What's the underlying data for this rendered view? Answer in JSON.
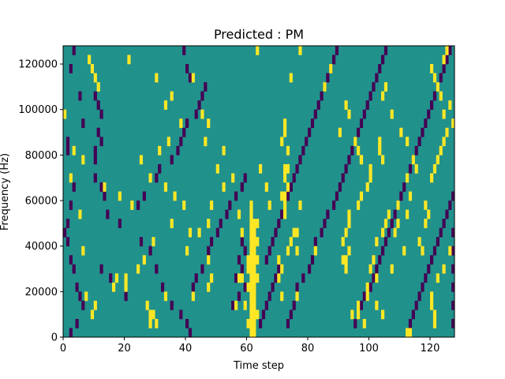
{
  "chart_data": {
    "type": "heatmap",
    "title": "Predicted : PM",
    "xlabel": "Time step",
    "ylabel": "Frequency (Hz)",
    "xlim": [
      0,
      128
    ],
    "ylim": [
      0,
      128000
    ],
    "xticks": [
      0,
      20,
      40,
      60,
      80,
      100,
      120
    ],
    "xtick_labels": [
      "0",
      "20",
      "40",
      "60",
      "80",
      "100",
      "120"
    ],
    "yticks": [
      0,
      20000,
      40000,
      60000,
      80000,
      100000,
      120000
    ],
    "ytick_labels": [
      "0",
      "20000",
      "40000",
      "60000",
      "80000",
      "100000",
      "120000"
    ],
    "grid": false,
    "colors": {
      "background": "#21918c",
      "high": "#fde725",
      "low": "#440154"
    },
    "cell_width": 1,
    "cell_height": 4000,
    "high_cells": [
      [
        61,
        0
      ],
      [
        62,
        0
      ],
      [
        61,
        4000
      ],
      [
        62,
        4000
      ],
      [
        61,
        8000
      ],
      [
        62,
        8000
      ],
      [
        61,
        12000
      ],
      [
        62,
        12000
      ],
      [
        61,
        16000
      ],
      [
        62,
        16000
      ],
      [
        61,
        20000
      ],
      [
        62,
        20000
      ],
      [
        61,
        24000
      ],
      [
        62,
        24000
      ],
      [
        61,
        28000
      ],
      [
        62,
        28000
      ],
      [
        61,
        32000
      ],
      [
        62,
        32000
      ],
      [
        61,
        36000
      ],
      [
        62,
        36000
      ],
      [
        61,
        40000
      ],
      [
        62,
        40000
      ],
      [
        61,
        44000
      ],
      [
        62,
        44000
      ],
      [
        61,
        48000
      ],
      [
        62,
        48000
      ],
      [
        61,
        52000
      ],
      [
        60,
        28000
      ],
      [
        60,
        32000
      ],
      [
        63,
        32000
      ],
      [
        63,
        40000
      ],
      [
        60,
        20000
      ],
      [
        63,
        24000
      ],
      [
        59,
        12000
      ],
      [
        60,
        4000
      ],
      [
        63,
        8000
      ],
      [
        28,
        4000
      ],
      [
        28,
        8000
      ],
      [
        29,
        8000
      ],
      [
        30,
        4000
      ],
      [
        33,
        16000
      ],
      [
        16,
        20000
      ],
      [
        20,
        20000
      ],
      [
        20,
        24000
      ],
      [
        17,
        24000
      ],
      [
        27,
        12000
      ],
      [
        10,
        12000
      ],
      [
        42,
        16000
      ],
      [
        47,
        20000
      ],
      [
        47,
        32000
      ],
      [
        48,
        24000
      ],
      [
        40,
        36000
      ],
      [
        41,
        44000
      ],
      [
        44,
        44000
      ],
      [
        35,
        48000
      ],
      [
        47,
        48000
      ],
      [
        48,
        56000
      ],
      [
        58,
        24000
      ],
      [
        56,
        12000
      ],
      [
        57,
        24000
      ],
      [
        61,
        56000
      ],
      [
        72,
        52000
      ],
      [
        72,
        56000
      ],
      [
        71,
        60000
      ],
      [
        72,
        60000
      ],
      [
        73,
        64000
      ],
      [
        72,
        68000
      ],
      [
        72,
        72000
      ],
      [
        73,
        72000
      ],
      [
        71,
        84000
      ],
      [
        72,
        88000
      ],
      [
        72,
        92000
      ],
      [
        73,
        80000
      ],
      [
        75,
        44000
      ],
      [
        74,
        40000
      ],
      [
        73,
        36000
      ],
      [
        70,
        32000
      ],
      [
        70,
        24000
      ],
      [
        71,
        16000
      ],
      [
        76,
        36000
      ],
      [
        76,
        16000
      ],
      [
        71,
        28000
      ],
      [
        76,
        44000
      ],
      [
        77,
        56000
      ],
      [
        82,
        36000
      ],
      [
        92,
        28000
      ],
      [
        91,
        32000
      ],
      [
        92,
        32000
      ],
      [
        93,
        36000
      ],
      [
        91,
        40000
      ],
      [
        92,
        44000
      ],
      [
        93,
        48000
      ],
      [
        93,
        52000
      ],
      [
        96,
        56000
      ],
      [
        97,
        60000
      ],
      [
        99,
        64000
      ],
      [
        100,
        68000
      ],
      [
        97,
        76000
      ],
      [
        101,
        32000
      ],
      [
        96,
        12000
      ],
      [
        96,
        8000
      ],
      [
        102,
        40000
      ],
      [
        100,
        72000
      ],
      [
        103,
        80000
      ],
      [
        103,
        84000
      ],
      [
        104,
        76000
      ],
      [
        100,
        28000
      ],
      [
        104,
        44000
      ],
      [
        105,
        48000
      ],
      [
        106,
        52000
      ],
      [
        109,
        56000
      ],
      [
        109,
        48000
      ],
      [
        102,
        12000
      ],
      [
        104,
        8000
      ],
      [
        112,
        0
      ],
      [
        113,
        0
      ],
      [
        116,
        40000
      ],
      [
        117,
        36000
      ],
      [
        118,
        48000
      ],
      [
        118,
        56000
      ],
      [
        119,
        52000
      ],
      [
        120,
        68000
      ],
      [
        121,
        72000
      ],
      [
        122,
        76000
      ],
      [
        123,
        80000
      ],
      [
        124,
        84000
      ],
      [
        125,
        88000
      ],
      [
        127,
        92000
      ],
      [
        124,
        96000
      ],
      [
        126,
        100000
      ],
      [
        123,
        104000
      ],
      [
        122,
        108000
      ],
      [
        121,
        112000
      ],
      [
        120,
        116000
      ],
      [
        124,
        120000
      ],
      [
        125,
        124000
      ],
      [
        124,
        28000
      ],
      [
        126,
        36000
      ],
      [
        122,
        24000
      ],
      [
        120,
        12000
      ],
      [
        121,
        4000
      ],
      [
        121,
        8000
      ],
      [
        120,
        16000
      ],
      [
        9,
        116000
      ],
      [
        10,
        112000
      ],
      [
        11,
        108000
      ],
      [
        8,
        120000
      ],
      [
        21,
        120000
      ],
      [
        30,
        112000
      ],
      [
        35,
        104000
      ],
      [
        33,
        100000
      ],
      [
        38,
        92000
      ],
      [
        34,
        84000
      ],
      [
        31,
        80000
      ],
      [
        25,
        76000
      ],
      [
        28,
        68000
      ],
      [
        33,
        64000
      ],
      [
        36,
        60000
      ],
      [
        39,
        56000
      ],
      [
        22,
        56000
      ],
      [
        18,
        60000
      ],
      [
        13,
        64000
      ],
      [
        6,
        76000
      ],
      [
        3,
        80000
      ],
      [
        0,
        96000
      ],
      [
        2,
        68000
      ],
      [
        5,
        52000
      ],
      [
        6,
        36000
      ],
      [
        9,
        8000
      ],
      [
        7,
        16000
      ],
      [
        24,
        28000
      ],
      [
        26,
        32000
      ],
      [
        29,
        40000
      ],
      [
        42,
        112000
      ],
      [
        45,
        96000
      ],
      [
        47,
        92000
      ],
      [
        46,
        84000
      ],
      [
        52,
        80000
      ],
      [
        50,
        72000
      ],
      [
        55,
        68000
      ],
      [
        52,
        64000
      ],
      [
        57,
        52000
      ],
      [
        58,
        44000
      ],
      [
        63,
        48000
      ],
      [
        67,
        56000
      ],
      [
        66,
        64000
      ],
      [
        64,
        72000
      ],
      [
        63,
        124000
      ],
      [
        74,
        112000
      ],
      [
        77,
        124000
      ],
      [
        85,
        108000
      ],
      [
        87,
        116000
      ],
      [
        92,
        100000
      ],
      [
        93,
        96000
      ],
      [
        90,
        88000
      ],
      [
        95,
        84000
      ],
      [
        96,
        80000
      ],
      [
        97,
        76000
      ],
      [
        105,
        108000
      ],
      [
        104,
        104000
      ],
      [
        107,
        96000
      ],
      [
        110,
        88000
      ],
      [
        112,
        84000
      ],
      [
        114,
        76000
      ],
      [
        115,
        72000
      ],
      [
        112,
        68000
      ],
      [
        113,
        60000
      ],
      [
        112,
        52000
      ],
      [
        108,
        44000
      ],
      [
        111,
        36000
      ],
      [
        107,
        28000
      ],
      [
        102,
        24000
      ],
      [
        99,
        20000
      ],
      [
        99,
        16000
      ],
      [
        98,
        4000
      ],
      [
        94,
        8000
      ]
    ],
    "low_cells": [
      [
        1,
        84000
      ],
      [
        1,
        80000
      ],
      [
        2,
        116000
      ],
      [
        3,
        124000
      ],
      [
        5,
        104000
      ],
      [
        6,
        92000
      ],
      [
        10,
        104000
      ],
      [
        11,
        100000
      ],
      [
        12,
        96000
      ],
      [
        11,
        88000
      ],
      [
        12,
        84000
      ],
      [
        10,
        80000
      ],
      [
        10,
        76000
      ],
      [
        10,
        68000
      ],
      [
        12,
        64000
      ],
      [
        13,
        60000
      ],
      [
        3,
        64000
      ],
      [
        2,
        56000
      ],
      [
        1,
        48000
      ],
      [
        0,
        44000
      ],
      [
        1,
        40000
      ],
      [
        2,
        32000
      ],
      [
        3,
        28000
      ],
      [
        4,
        20000
      ],
      [
        5,
        16000
      ],
      [
        6,
        12000
      ],
      [
        4,
        4000
      ],
      [
        2,
        0
      ],
      [
        12,
        28000
      ],
      [
        15,
        24000
      ],
      [
        20,
        16000
      ],
      [
        18,
        48000
      ],
      [
        14,
        52000
      ],
      [
        24,
        56000
      ],
      [
        26,
        60000
      ],
      [
        30,
        68000
      ],
      [
        31,
        72000
      ],
      [
        35,
        76000
      ],
      [
        37,
        80000
      ],
      [
        38,
        84000
      ],
      [
        39,
        88000
      ],
      [
        40,
        92000
      ],
      [
        43,
        96000
      ],
      [
        44,
        100000
      ],
      [
        45,
        104000
      ],
      [
        46,
        108000
      ],
      [
        41,
        112000
      ],
      [
        40,
        116000
      ],
      [
        39,
        124000
      ],
      [
        25,
        40000
      ],
      [
        28,
        36000
      ],
      [
        30,
        28000
      ],
      [
        32,
        20000
      ],
      [
        35,
        12000
      ],
      [
        38,
        8000
      ],
      [
        40,
        4000
      ],
      [
        41,
        0
      ],
      [
        42,
        20000
      ],
      [
        43,
        24000
      ],
      [
        45,
        28000
      ],
      [
        47,
        36000
      ],
      [
        48,
        40000
      ],
      [
        50,
        44000
      ],
      [
        51,
        48000
      ],
      [
        53,
        52000
      ],
      [
        54,
        56000
      ],
      [
        56,
        60000
      ],
      [
        58,
        64000
      ],
      [
        59,
        68000
      ],
      [
        55,
        12000
      ],
      [
        57,
        16000
      ],
      [
        59,
        20000
      ],
      [
        56,
        24000
      ],
      [
        58,
        28000
      ],
      [
        57,
        32000
      ],
      [
        59,
        36000
      ],
      [
        58,
        40000
      ],
      [
        64,
        4000
      ],
      [
        65,
        8000
      ],
      [
        66,
        12000
      ],
      [
        67,
        16000
      ],
      [
        68,
        20000
      ],
      [
        69,
        24000
      ],
      [
        70,
        28000
      ],
      [
        66,
        32000
      ],
      [
        67,
        36000
      ],
      [
        68,
        40000
      ],
      [
        69,
        44000
      ],
      [
        70,
        48000
      ],
      [
        71,
        52000
      ],
      [
        72,
        56000
      ],
      [
        73,
        60000
      ],
      [
        74,
        64000
      ],
      [
        75,
        68000
      ],
      [
        76,
        72000
      ],
      [
        77,
        76000
      ],
      [
        78,
        80000
      ],
      [
        79,
        84000
      ],
      [
        80,
        88000
      ],
      [
        81,
        92000
      ],
      [
        82,
        96000
      ],
      [
        83,
        100000
      ],
      [
        84,
        104000
      ],
      [
        85,
        108000
      ],
      [
        86,
        112000
      ],
      [
        87,
        116000
      ],
      [
        88,
        120000
      ],
      [
        89,
        124000
      ],
      [
        73,
        4000
      ],
      [
        74,
        8000
      ],
      [
        75,
        12000
      ],
      [
        76,
        20000
      ],
      [
        78,
        24000
      ],
      [
        80,
        28000
      ],
      [
        81,
        32000
      ],
      [
        82,
        40000
      ],
      [
        84,
        44000
      ],
      [
        85,
        48000
      ],
      [
        86,
        52000
      ],
      [
        88,
        56000
      ],
      [
        89,
        60000
      ],
      [
        90,
        64000
      ],
      [
        91,
        68000
      ],
      [
        92,
        72000
      ],
      [
        93,
        76000
      ],
      [
        94,
        80000
      ],
      [
        95,
        84000
      ],
      [
        96,
        88000
      ],
      [
        97,
        92000
      ],
      [
        98,
        96000
      ],
      [
        99,
        100000
      ],
      [
        100,
        104000
      ],
      [
        101,
        108000
      ],
      [
        102,
        112000
      ],
      [
        103,
        116000
      ],
      [
        104,
        120000
      ],
      [
        105,
        124000
      ],
      [
        95,
        4000
      ],
      [
        96,
        8000
      ],
      [
        97,
        12000
      ],
      [
        98,
        16000
      ],
      [
        100,
        20000
      ],
      [
        101,
        24000
      ],
      [
        102,
        28000
      ],
      [
        103,
        32000
      ],
      [
        104,
        36000
      ],
      [
        105,
        40000
      ],
      [
        106,
        44000
      ],
      [
        107,
        48000
      ],
      [
        108,
        52000
      ],
      [
        109,
        56000
      ],
      [
        110,
        60000
      ],
      [
        111,
        64000
      ],
      [
        112,
        68000
      ],
      [
        113,
        72000
      ],
      [
        114,
        76000
      ],
      [
        115,
        80000
      ],
      [
        116,
        84000
      ],
      [
        117,
        88000
      ],
      [
        118,
        92000
      ],
      [
        119,
        96000
      ],
      [
        120,
        100000
      ],
      [
        121,
        104000
      ],
      [
        122,
        108000
      ],
      [
        123,
        112000
      ],
      [
        124,
        116000
      ],
      [
        125,
        120000
      ],
      [
        126,
        124000
      ],
      [
        113,
        4000
      ],
      [
        114,
        8000
      ],
      [
        115,
        12000
      ],
      [
        116,
        16000
      ],
      [
        117,
        20000
      ],
      [
        118,
        24000
      ],
      [
        119,
        28000
      ],
      [
        120,
        32000
      ],
      [
        121,
        36000
      ],
      [
        122,
        40000
      ],
      [
        123,
        44000
      ],
      [
        124,
        48000
      ],
      [
        125,
        52000
      ],
      [
        126,
        56000
      ],
      [
        127,
        60000
      ],
      [
        127,
        44000
      ],
      [
        127,
        36000
      ],
      [
        127,
        28000
      ],
      [
        127,
        20000
      ],
      [
        127,
        12000
      ],
      [
        127,
        4000
      ]
    ]
  }
}
